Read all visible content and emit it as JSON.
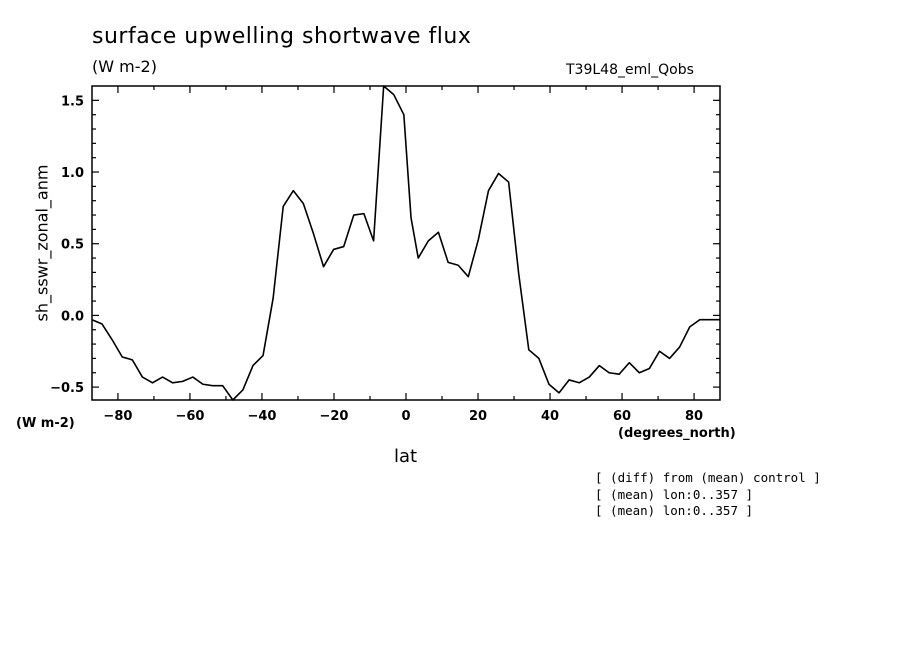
{
  "header": {
    "title": "surface upwelling shortwave flux",
    "units": "(W m-2)",
    "run": "T39L48_eml_Qobs"
  },
  "notes": [
    "[ (diff) from (mean) control ]",
    "[ (mean) lon:0..357 ]",
    "[ (mean) lon:0..357 ]"
  ],
  "chart_data": {
    "type": "line",
    "title": "surface upwelling shortwave flux",
    "xlabel": "lat",
    "x_units": "(degrees_north)",
    "ylabel": "sh_sswr_zonal_anm",
    "y_units": "(W m-2)",
    "xlim": [
      -87.2,
      87.2
    ],
    "ylim": [
      -0.59,
      1.6
    ],
    "x_ticks": [
      -80,
      -60,
      -40,
      -20,
      0,
      20,
      40,
      60,
      80
    ],
    "y_ticks": [
      -0.5,
      0.0,
      0.5,
      1.0,
      1.5
    ],
    "grid": false,
    "series": [
      {
        "x": [
          -87.2,
          -84.4,
          -81.6,
          -78.8,
          -76.0,
          -73.2,
          -70.4,
          -67.6,
          -64.8,
          -62.0,
          -59.2,
          -56.4,
          -53.7,
          -50.9,
          -48.1,
          -45.3,
          -42.5,
          -39.7,
          -36.9,
          -34.1,
          -31.3,
          -28.5,
          -25.7,
          -22.9,
          -20.1,
          -17.3,
          -14.5,
          -11.7,
          -9.0,
          -6.2,
          -3.4,
          -0.6,
          1.4,
          3.4,
          6.2,
          9.0,
          11.7,
          14.5,
          17.3,
          20.1,
          22.9,
          25.7,
          28.5,
          31.3,
          34.1,
          36.9,
          39.7,
          42.5,
          45.3,
          48.1,
          50.9,
          53.7,
          56.4,
          59.2,
          62.0,
          64.8,
          67.6,
          70.4,
          73.2,
          76.0,
          78.8,
          81.6,
          84.4,
          87.2
        ],
        "y": [
          -0.03,
          -0.06,
          -0.17,
          -0.29,
          -0.31,
          -0.43,
          -0.47,
          -0.43,
          -0.47,
          -0.46,
          -0.43,
          -0.48,
          -0.49,
          -0.49,
          -0.59,
          -0.52,
          -0.35,
          -0.28,
          0.12,
          0.76,
          0.87,
          0.78,
          0.57,
          0.34,
          0.46,
          0.48,
          0.7,
          0.71,
          0.52,
          1.6,
          1.54,
          1.4,
          0.68,
          0.4,
          0.52,
          0.58,
          0.37,
          0.35,
          0.27,
          0.53,
          0.87,
          0.99,
          0.93,
          0.29,
          -0.24,
          -0.3,
          -0.48,
          -0.54,
          -0.45,
          -0.47,
          -0.43,
          -0.35,
          -0.4,
          -0.41,
          -0.33,
          -0.4,
          -0.37,
          -0.25,
          -0.3,
          -0.22,
          -0.08,
          -0.03,
          -0.03,
          -0.03
        ]
      }
    ]
  }
}
